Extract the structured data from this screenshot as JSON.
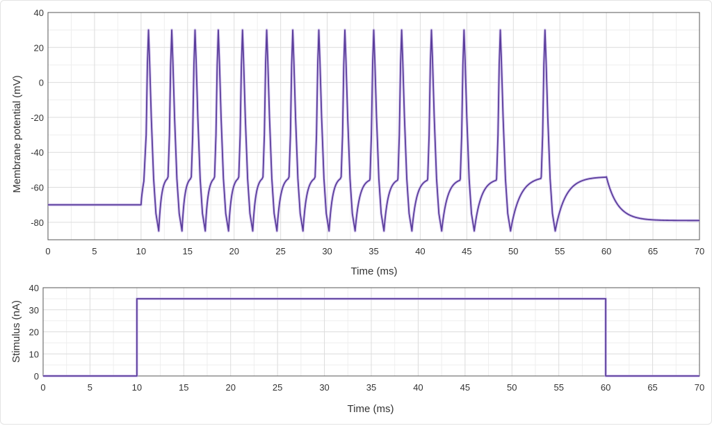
{
  "colors": {
    "trace": "#5b3d9c",
    "trace_glow": "#c9b8ea",
    "grid": "#dcdcdc",
    "axis": "#555555"
  },
  "chart_data": [
    {
      "type": "line",
      "xlabel": "Time (ms)",
      "ylabel": "Membrane potential (mV)",
      "xlim": [
        0,
        70
      ],
      "ylim": [
        -90,
        40
      ],
      "xticks": [
        0,
        5,
        10,
        15,
        20,
        25,
        30,
        35,
        40,
        45,
        50,
        55,
        60,
        65,
        70
      ],
      "yticks": [
        -80,
        -60,
        -40,
        -20,
        0,
        20,
        40
      ],
      "grid": true,
      "series": [
        {
          "resting_potential": -70,
          "spike_peak": 30,
          "spike_trough": -85,
          "spike_times": [
            10.8,
            13.3,
            15.8,
            18.3,
            20.9,
            23.5,
            26.3,
            29.1,
            31.9,
            35.0,
            38.0,
            41.2,
            44.7,
            48.6,
            53.4
          ],
          "threshold_before_spike": [
            -55,
            -55,
            -55,
            -55,
            -55,
            -55,
            -55,
            -55,
            -55,
            -56,
            -56,
            -56,
            -56,
            -56,
            -55
          ],
          "plateau_end": -54,
          "stim_off_time": 60,
          "final_potential": -79
        }
      ]
    },
    {
      "type": "line",
      "xlabel": "Time (ms)",
      "ylabel": "Stimulus (nA)",
      "xlim": [
        0,
        70
      ],
      "ylim": [
        0,
        40
      ],
      "xticks": [
        0,
        5,
        10,
        15,
        20,
        25,
        30,
        35,
        40,
        45,
        50,
        55,
        60,
        65,
        70
      ],
      "yticks": [
        0,
        10,
        20,
        30,
        40
      ],
      "grid": true,
      "series": [
        {
          "x": [
            0,
            10,
            10,
            60,
            60,
            70
          ],
          "y": [
            0,
            0,
            35,
            35,
            0,
            0
          ]
        }
      ]
    }
  ]
}
